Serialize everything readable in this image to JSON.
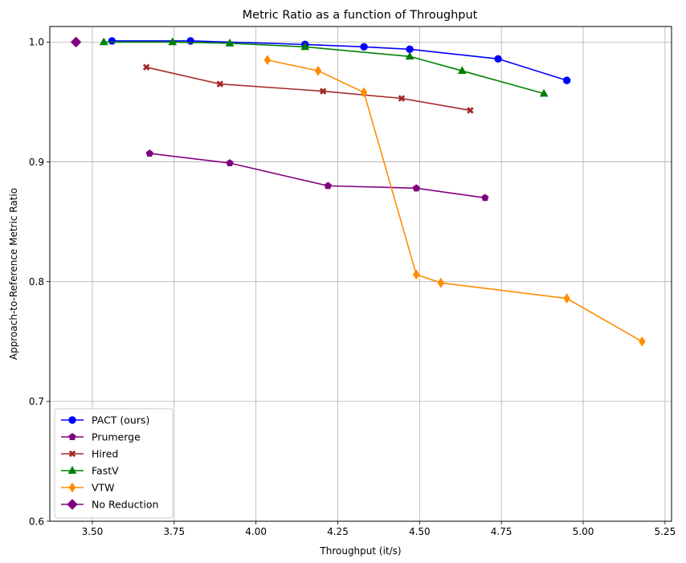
{
  "chart_data": {
    "type": "line",
    "title": "Metric Ratio as a function of Throughput",
    "xlabel": "Throughput (it/s)",
    "ylabel": "Approach-to-Reference Metric Ratio",
    "xlim": [
      3.37,
      5.27
    ],
    "ylim": [
      0.6,
      1.013
    ],
    "xticks": [
      3.5,
      3.75,
      4.0,
      4.25,
      4.5,
      4.75,
      5.0,
      5.25
    ],
    "xtick_labels": [
      "3.50",
      "3.75",
      "4.00",
      "4.25",
      "4.50",
      "4.75",
      "5.00",
      "5.25"
    ],
    "yticks": [
      0.6,
      0.7,
      0.8,
      0.9,
      1.0
    ],
    "ytick_labels": [
      "0.6",
      "0.7",
      "0.8",
      "0.9",
      "1.0"
    ],
    "grid": true,
    "legend_position": "lower-left",
    "series": [
      {
        "name": "PACT (ours)",
        "color": "#0000ff",
        "marker": "circle",
        "x": [
          3.56,
          3.8,
          4.15,
          4.33,
          4.47,
          4.74,
          4.95
        ],
        "y": [
          1.001,
          1.001,
          0.998,
          0.996,
          0.994,
          0.986,
          0.968
        ]
      },
      {
        "name": "Prumerge",
        "color": "#800080",
        "marker": "pentagon",
        "x": [
          3.675,
          3.92,
          4.22,
          4.49,
          4.7
        ],
        "y": [
          0.907,
          0.899,
          0.88,
          0.878,
          0.87
        ]
      },
      {
        "name": "Hired",
        "color": "#a52a2a",
        "marker": "x",
        "x": [
          3.665,
          3.89,
          4.205,
          4.445,
          4.655
        ],
        "y": [
          0.979,
          0.965,
          0.959,
          0.953,
          0.943
        ]
      },
      {
        "name": "FastV",
        "color": "#008000",
        "marker": "triangle",
        "x": [
          3.535,
          3.745,
          3.92,
          4.15,
          4.47,
          4.63,
          4.88
        ],
        "y": [
          1.0,
          1.0,
          0.999,
          0.996,
          0.988,
          0.976,
          0.957
        ]
      },
      {
        "name": "VTW",
        "color": "#ff8c00",
        "marker": "thin_diamond",
        "x": [
          4.035,
          4.19,
          4.33,
          4.49,
          4.565,
          4.95,
          5.18
        ],
        "y": [
          0.985,
          0.976,
          0.958,
          0.806,
          0.799,
          0.786,
          0.75
        ]
      },
      {
        "name": "No Reduction",
        "color": "#800080",
        "marker": "diamond",
        "x": [
          3.45
        ],
        "y": [
          1.0
        ]
      }
    ]
  }
}
